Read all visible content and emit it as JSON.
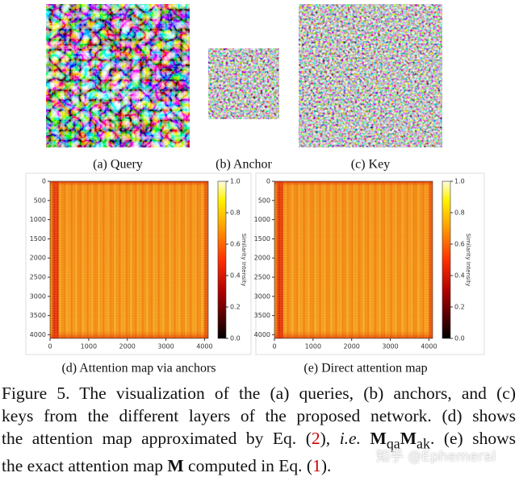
{
  "images": [
    {
      "caption": "(a) Query"
    },
    {
      "caption": "(b) Anchor"
    },
    {
      "caption": "(c) Key"
    }
  ],
  "heatmaps": [
    {
      "caption": "(d) Attention map via anchors",
      "xlim": [
        0,
        4096
      ],
      "ylim": [
        0,
        4096
      ],
      "xticks": [
        0,
        1000,
        2000,
        3000,
        4000
      ],
      "yticks": [
        0,
        500,
        1000,
        1500,
        2000,
        2500,
        3000,
        3500,
        4000
      ],
      "colorbar_label": "Similarity Intensity",
      "colorbar_lim": [
        0,
        1
      ],
      "colorbar_ticks": [
        {
          "value": 0,
          "label": "0.0"
        },
        0.2,
        0.4,
        0.6,
        0.8,
        {
          "value": 1,
          "label": "1.0"
        }
      ]
    },
    {
      "caption": "(e) Direct attention map",
      "xlim": [
        0,
        4096
      ],
      "ylim": [
        0,
        4096
      ],
      "xticks": [
        0,
        1000,
        2000,
        3000,
        4000
      ],
      "yticks": [
        0,
        500,
        1000,
        1500,
        2000,
        2500,
        3000,
        3500,
        4000
      ],
      "colorbar_label": "Similarity Intensity",
      "colorbar_lim": [
        0,
        1
      ],
      "colorbar_ticks": [
        {
          "value": 0,
          "label": "0.0"
        },
        0.2,
        0.4,
        0.6,
        0.8,
        {
          "value": 1,
          "label": "1.0"
        }
      ]
    }
  ],
  "caption": {
    "line1": "Figure 5. The visualization of the (a) queries, (b) anchors, and (c)",
    "line2": "keys from the different layers of the proposed network. (d) shows",
    "line3": [
      "the attention map approximated by Eq. (",
      "2",
      "), ",
      "i.e.",
      "M",
      "qa",
      "M",
      "ak",
      ". (e) shows"
    ],
    "line4": [
      "the exact attention map ",
      "M",
      " computed in Eq. (",
      "1",
      ")."
    ]
  },
  "watermark": "知乎 @Ephemeral"
}
